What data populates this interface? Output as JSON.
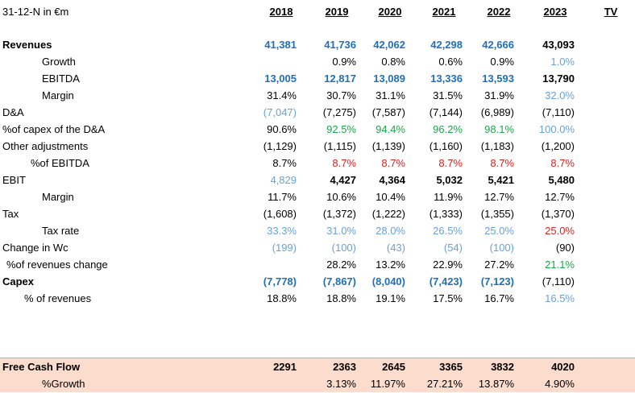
{
  "header": {
    "corner": "31-12-N in €m",
    "years": [
      "2018",
      "2019",
      "2020",
      "2021",
      "2022",
      "2023"
    ],
    "tv": "TV"
  },
  "rows": {
    "revenues": {
      "label": "Revenues",
      "v": [
        "41,381",
        "41,736",
        "42,062",
        "42,298",
        "42,666",
        "43,093"
      ]
    },
    "growth": {
      "label": "Growth",
      "v": [
        "",
        "0.9%",
        "0.8%",
        "0.6%",
        "0.9%",
        "1.0%"
      ]
    },
    "ebitda": {
      "label": "EBITDA",
      "v": [
        "13,005",
        "12,817",
        "13,089",
        "13,336",
        "13,593",
        "13,790"
      ]
    },
    "margin1": {
      "label": "Margin",
      "v": [
        "31.4%",
        "30.7%",
        "31.1%",
        "31.5%",
        "31.9%",
        "32.0%"
      ]
    },
    "da": {
      "label": "D&A",
      "v": [
        "(7,047)",
        "(7,275)",
        "(7,587)",
        "(7,144)",
        "(6,989)",
        "(7,110)"
      ]
    },
    "capex_da": {
      "label": "%of capex of the D&A",
      "v": [
        "90.6%",
        "92.5%",
        "94.4%",
        "96.2%",
        "98.1%",
        "100.0%"
      ]
    },
    "other_adj": {
      "label": "Other adjustments",
      "v": [
        "(1,129)",
        "(1,115)",
        "(1,139)",
        "(1,160)",
        "(1,183)",
        "(1,200)"
      ]
    },
    "pct_ebitda": {
      "label": "%of EBITDA",
      "v": [
        "8.7%",
        "8.7%",
        "8.7%",
        "8.7%",
        "8.7%",
        "8.7%"
      ]
    },
    "ebit": {
      "label": "EBIT",
      "v": [
        "4,829",
        "4,427",
        "4,364",
        "5,032",
        "5,421",
        "5,480"
      ]
    },
    "margin2": {
      "label": "Margin",
      "v": [
        "11.7%",
        "10.6%",
        "10.4%",
        "11.9%",
        "12.7%",
        "12.7%"
      ]
    },
    "tax": {
      "label": "Tax",
      "v": [
        "(1,608)",
        "(1,372)",
        "(1,222)",
        "(1,333)",
        "(1,355)",
        "(1,370)"
      ]
    },
    "tax_rate": {
      "label": "Tax rate",
      "v": [
        "33.3%",
        "31.0%",
        "28.0%",
        "26.5%",
        "25.0%",
        "25.0%"
      ]
    },
    "wc": {
      "label": "Change in Wc",
      "v": [
        "(199)",
        "(100)",
        "(43)",
        "(54)",
        "(100)",
        "(90)"
      ]
    },
    "rev_change": {
      "label": "%of revenues change",
      "v": [
        "",
        "28.2%",
        "13.2%",
        "22.9%",
        "27.2%",
        "21.1%"
      ]
    },
    "capex": {
      "label": "Capex",
      "v": [
        "(7,778)",
        "(7,867)",
        "(8,040)",
        "(7,423)",
        "(7,123)",
        "(7,110)"
      ]
    },
    "pct_rev": {
      "label": "% of revenues",
      "v": [
        "18.8%",
        "18.8%",
        "19.1%",
        "17.5%",
        "16.7%",
        "16.5%"
      ]
    },
    "fcf": {
      "label": "Free Cash Flow",
      "v": [
        "2291",
        "2363",
        "2645",
        "3365",
        "3832",
        "4020"
      ]
    },
    "fcf_growth": {
      "label": "%Growth",
      "v": [
        "",
        "3.13%",
        "11.97%",
        "27.21%",
        "13.87%",
        "4.90%"
      ]
    }
  },
  "colors": {
    "blue": "#1f6fbf",
    "light_blue": "#6aa0d8",
    "green": "#1aa64a",
    "red": "#e0201e",
    "fcf_bg": "#fbdccd"
  }
}
